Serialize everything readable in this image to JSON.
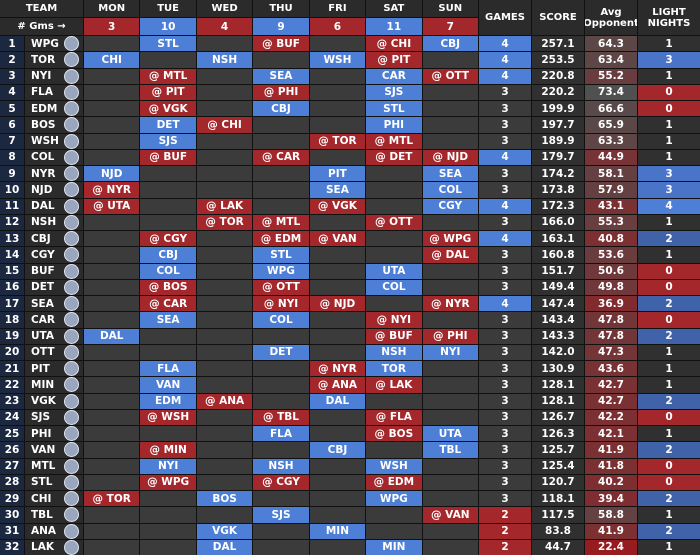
{
  "header": {
    "team": "TEAM",
    "gms_label": "# Gms →",
    "days": [
      "MON",
      "TUE",
      "WED",
      "THU",
      "FRI",
      "SAT",
      "SUN"
    ],
    "day_counts": [
      3,
      10,
      4,
      9,
      6,
      11,
      7
    ],
    "games": "GAMES",
    "score": "SCORE",
    "avg_opponent": "Avg Opponent",
    "light_nights": "LIGHT NIGHTS"
  },
  "rows": [
    {
      "rank": 1,
      "team": "WPG",
      "days": [
        null,
        "STL",
        null,
        "@ BUF",
        null,
        "@ CHI",
        "CBJ"
      ],
      "games": 4,
      "score": "257.1",
      "avg": "64.3",
      "light": 1
    },
    {
      "rank": 2,
      "team": "TOR",
      "days": [
        "CHI",
        null,
        "NSH",
        null,
        "WSH",
        "@ PIT",
        null
      ],
      "games": 4,
      "score": "253.5",
      "avg": "63.4",
      "light": 3
    },
    {
      "rank": 3,
      "team": "NYI",
      "days": [
        null,
        "@ MTL",
        null,
        "SEA",
        null,
        "CAR",
        "@ OTT"
      ],
      "games": 4,
      "score": "220.8",
      "avg": "55.2",
      "light": 1
    },
    {
      "rank": 4,
      "team": "FLA",
      "days": [
        null,
        "@ PIT",
        null,
        "@ PHI",
        null,
        "SJS",
        null
      ],
      "games": 3,
      "score": "220.2",
      "avg": "73.4",
      "light": 0
    },
    {
      "rank": 5,
      "team": "EDM",
      "days": [
        null,
        "@ VGK",
        null,
        "CBJ",
        null,
        "STL",
        null
      ],
      "games": 3,
      "score": "199.9",
      "avg": "66.6",
      "light": 0
    },
    {
      "rank": 6,
      "team": "BOS",
      "days": [
        null,
        "DET",
        "@ CHI",
        null,
        null,
        "PHI",
        null
      ],
      "games": 3,
      "score": "197.7",
      "avg": "65.9",
      "light": 1
    },
    {
      "rank": 7,
      "team": "WSH",
      "days": [
        null,
        "SJS",
        null,
        null,
        "@ TOR",
        "@ MTL",
        null
      ],
      "games": 3,
      "score": "189.9",
      "avg": "63.3",
      "light": 1
    },
    {
      "rank": 8,
      "team": "COL",
      "days": [
        null,
        "@ BUF",
        null,
        "@ CAR",
        null,
        "@ DET",
        "@ NJD"
      ],
      "games": 4,
      "score": "179.7",
      "avg": "44.9",
      "light": 1
    },
    {
      "rank": 9,
      "team": "NYR",
      "days": [
        "NJD",
        null,
        null,
        null,
        "PIT",
        null,
        "SEA"
      ],
      "games": 3,
      "score": "174.2",
      "avg": "58.1",
      "light": 3
    },
    {
      "rank": 10,
      "team": "NJD",
      "days": [
        "@ NYR",
        null,
        null,
        null,
        "SEA",
        null,
        "COL"
      ],
      "games": 3,
      "score": "173.8",
      "avg": "57.9",
      "light": 3
    },
    {
      "rank": 11,
      "team": "DAL",
      "days": [
        "@ UTA",
        null,
        "@ LAK",
        null,
        "@ VGK",
        null,
        "CGY"
      ],
      "games": 4,
      "score": "172.3",
      "avg": "43.1",
      "light": 4
    },
    {
      "rank": 12,
      "team": "NSH",
      "days": [
        null,
        null,
        "@ TOR",
        "@ MTL",
        null,
        "@ OTT",
        null
      ],
      "games": 3,
      "score": "166.0",
      "avg": "55.3",
      "light": 1
    },
    {
      "rank": 13,
      "team": "CBJ",
      "days": [
        null,
        "@ CGY",
        null,
        "@ EDM",
        "@ VAN",
        null,
        "@ WPG"
      ],
      "games": 4,
      "score": "163.1",
      "avg": "40.8",
      "light": 2
    },
    {
      "rank": 14,
      "team": "CGY",
      "days": [
        null,
        "CBJ",
        null,
        "STL",
        null,
        null,
        "@ DAL"
      ],
      "games": 3,
      "score": "160.8",
      "avg": "53.6",
      "light": 1
    },
    {
      "rank": 15,
      "team": "BUF",
      "days": [
        null,
        "COL",
        null,
        "WPG",
        null,
        "UTA",
        null
      ],
      "games": 3,
      "score": "151.7",
      "avg": "50.6",
      "light": 0
    },
    {
      "rank": 16,
      "team": "DET",
      "days": [
        null,
        "@ BOS",
        null,
        "@ OTT",
        null,
        "COL",
        null
      ],
      "games": 3,
      "score": "149.4",
      "avg": "49.8",
      "light": 0
    },
    {
      "rank": 17,
      "team": "SEA",
      "days": [
        null,
        "@ CAR",
        null,
        "@ NYI",
        "@ NJD",
        null,
        "@ NYR"
      ],
      "games": 4,
      "score": "147.4",
      "avg": "36.9",
      "light": 2
    },
    {
      "rank": 18,
      "team": "CAR",
      "days": [
        null,
        "SEA",
        null,
        "COL",
        null,
        "@ NYI",
        null
      ],
      "games": 3,
      "score": "143.4",
      "avg": "47.8",
      "light": 0
    },
    {
      "rank": 19,
      "team": "UTA",
      "days": [
        "DAL",
        null,
        null,
        null,
        null,
        "@ BUF",
        "@ PHI"
      ],
      "games": 3,
      "score": "143.3",
      "avg": "47.8",
      "light": 2
    },
    {
      "rank": 20,
      "team": "OTT",
      "days": [
        null,
        null,
        null,
        "DET",
        null,
        "NSH",
        "NYI"
      ],
      "games": 3,
      "score": "142.0",
      "avg": "47.3",
      "light": 1
    },
    {
      "rank": 21,
      "team": "PIT",
      "days": [
        null,
        "FLA",
        null,
        null,
        "@ NYR",
        "TOR",
        null
      ],
      "games": 3,
      "score": "130.9",
      "avg": "43.6",
      "light": 1
    },
    {
      "rank": 22,
      "team": "MIN",
      "days": [
        null,
        "VAN",
        null,
        null,
        "@ ANA",
        "@ LAK",
        null
      ],
      "games": 3,
      "score": "128.1",
      "avg": "42.7",
      "light": 1
    },
    {
      "rank": 23,
      "team": "VGK",
      "days": [
        null,
        "EDM",
        "@ ANA",
        null,
        "DAL",
        null,
        null
      ],
      "games": 3,
      "score": "128.1",
      "avg": "42.7",
      "light": 2
    },
    {
      "rank": 24,
      "team": "SJS",
      "days": [
        null,
        "@ WSH",
        null,
        "@ TBL",
        null,
        "@ FLA",
        null
      ],
      "games": 3,
      "score": "126.7",
      "avg": "42.2",
      "light": 0
    },
    {
      "rank": 25,
      "team": "PHI",
      "days": [
        null,
        null,
        null,
        "FLA",
        null,
        "@ BOS",
        "UTA"
      ],
      "games": 3,
      "score": "126.3",
      "avg": "42.1",
      "light": 1
    },
    {
      "rank": 26,
      "team": "VAN",
      "days": [
        null,
        "@ MIN",
        null,
        null,
        "CBJ",
        null,
        "TBL"
      ],
      "games": 3,
      "score": "125.7",
      "avg": "41.9",
      "light": 2
    },
    {
      "rank": 27,
      "team": "MTL",
      "days": [
        null,
        "NYI",
        null,
        "NSH",
        null,
        "WSH",
        null
      ],
      "games": 3,
      "score": "125.4",
      "avg": "41.8",
      "light": 0
    },
    {
      "rank": 28,
      "team": "STL",
      "days": [
        null,
        "@ WPG",
        null,
        "@ CGY",
        null,
        "@ EDM",
        null
      ],
      "games": 3,
      "score": "120.7",
      "avg": "40.2",
      "light": 0
    },
    {
      "rank": 29,
      "team": "CHI",
      "days": [
        "@ TOR",
        null,
        "BOS",
        null,
        null,
        "WPG",
        null
      ],
      "games": 3,
      "score": "118.1",
      "avg": "39.4",
      "light": 2
    },
    {
      "rank": 30,
      "team": "TBL",
      "days": [
        null,
        null,
        null,
        "SJS",
        null,
        null,
        "@ VAN"
      ],
      "games": 2,
      "score": "117.5",
      "avg": "58.8",
      "light": 1
    },
    {
      "rank": 31,
      "team": "ANA",
      "days": [
        null,
        null,
        "VGK",
        null,
        "MIN",
        null,
        null
      ],
      "games": 2,
      "score": "83.8",
      "avg": "41.9",
      "light": 2
    },
    {
      "rank": 32,
      "team": "LAK",
      "days": [
        null,
        null,
        "DAL",
        null,
        null,
        "MIN",
        null
      ],
      "games": 2,
      "score": "44.7",
      "avg": "22.4",
      "light": 1
    }
  ]
}
